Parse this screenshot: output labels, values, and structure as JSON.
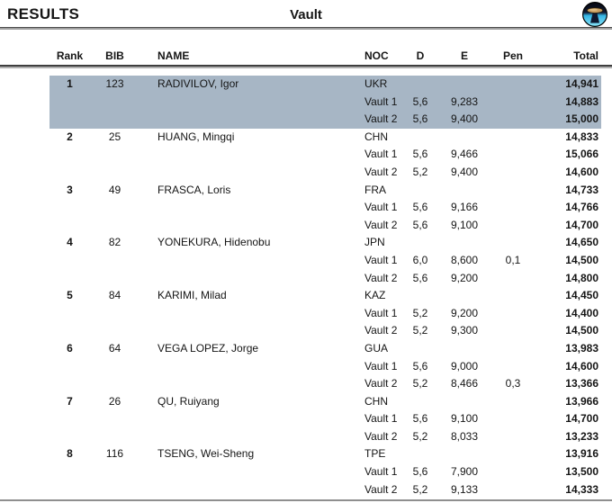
{
  "header": {
    "results_label": "RESULTS",
    "event_title": "Vault",
    "logo_icon": "vault-apparatus-icon"
  },
  "table": {
    "headers": {
      "rank": "Rank",
      "bib": "BIB",
      "name": "NAME",
      "noc": "NOC",
      "d": "D",
      "e": "E",
      "pen": "Pen",
      "total": "Total"
    }
  },
  "colors": {
    "highlight_row": "#a7b6c5",
    "logo_cyan": "#3fc0e8",
    "logo_dark": "#0a1026",
    "logo_table_top": "#c9a063"
  },
  "athletes": [
    {
      "rank": "1",
      "bib": "123",
      "name": "RADIVILOV, Igor",
      "noc": "UKR",
      "total": "14,941",
      "highlighted": true,
      "vaults": [
        {
          "label": "Vault 1",
          "d": "5,6",
          "e": "9,283",
          "pen": "",
          "total": "14,883"
        },
        {
          "label": "Vault 2",
          "d": "5,6",
          "e": "9,400",
          "pen": "",
          "total": "15,000"
        }
      ]
    },
    {
      "rank": "2",
      "bib": "25",
      "name": "HUANG, Mingqi",
      "noc": "CHN",
      "total": "14,833",
      "highlighted": false,
      "vaults": [
        {
          "label": "Vault 1",
          "d": "5,6",
          "e": "9,466",
          "pen": "",
          "total": "15,066"
        },
        {
          "label": "Vault 2",
          "d": "5,2",
          "e": "9,400",
          "pen": "",
          "total": "14,600"
        }
      ]
    },
    {
      "rank": "3",
      "bib": "49",
      "name": "FRASCA, Loris",
      "noc": "FRA",
      "total": "14,733",
      "highlighted": false,
      "vaults": [
        {
          "label": "Vault 1",
          "d": "5,6",
          "e": "9,166",
          "pen": "",
          "total": "14,766"
        },
        {
          "label": "Vault 2",
          "d": "5,6",
          "e": "9,100",
          "pen": "",
          "total": "14,700"
        }
      ]
    },
    {
      "rank": "4",
      "bib": "82",
      "name": "YONEKURA, Hidenobu",
      "noc": "JPN",
      "total": "14,650",
      "highlighted": false,
      "vaults": [
        {
          "label": "Vault 1",
          "d": "6,0",
          "e": "8,600",
          "pen": "0,1",
          "total": "14,500"
        },
        {
          "label": "Vault 2",
          "d": "5,6",
          "e": "9,200",
          "pen": "",
          "total": "14,800"
        }
      ]
    },
    {
      "rank": "5",
      "bib": "84",
      "name": "KARIMI, Milad",
      "noc": "KAZ",
      "total": "14,450",
      "highlighted": false,
      "vaults": [
        {
          "label": "Vault 1",
          "d": "5,2",
          "e": "9,200",
          "pen": "",
          "total": "14,400"
        },
        {
          "label": "Vault 2",
          "d": "5,2",
          "e": "9,300",
          "pen": "",
          "total": "14,500"
        }
      ]
    },
    {
      "rank": "6",
      "bib": "64",
      "name": "VEGA LOPEZ, Jorge",
      "noc": "GUA",
      "total": "13,983",
      "highlighted": false,
      "vaults": [
        {
          "label": "Vault 1",
          "d": "5,6",
          "e": "9,000",
          "pen": "",
          "total": "14,600"
        },
        {
          "label": "Vault 2",
          "d": "5,2",
          "e": "8,466",
          "pen": "0,3",
          "total": "13,366"
        }
      ]
    },
    {
      "rank": "7",
      "bib": "26",
      "name": "QU, Ruiyang",
      "noc": "CHN",
      "total": "13,966",
      "highlighted": false,
      "vaults": [
        {
          "label": "Vault 1",
          "d": "5,6",
          "e": "9,100",
          "pen": "",
          "total": "14,700"
        },
        {
          "label": "Vault 2",
          "d": "5,2",
          "e": "8,033",
          "pen": "",
          "total": "13,233"
        }
      ]
    },
    {
      "rank": "8",
      "bib": "116",
      "name": "TSENG, Wei-Sheng",
      "noc": "TPE",
      "total": "13,916",
      "highlighted": false,
      "vaults": [
        {
          "label": "Vault 1",
          "d": "5,6",
          "e": "7,900",
          "pen": "",
          "total": "13,500"
        },
        {
          "label": "Vault 2",
          "d": "5,2",
          "e": "9,133",
          "pen": "",
          "total": "14,333"
        }
      ]
    }
  ]
}
